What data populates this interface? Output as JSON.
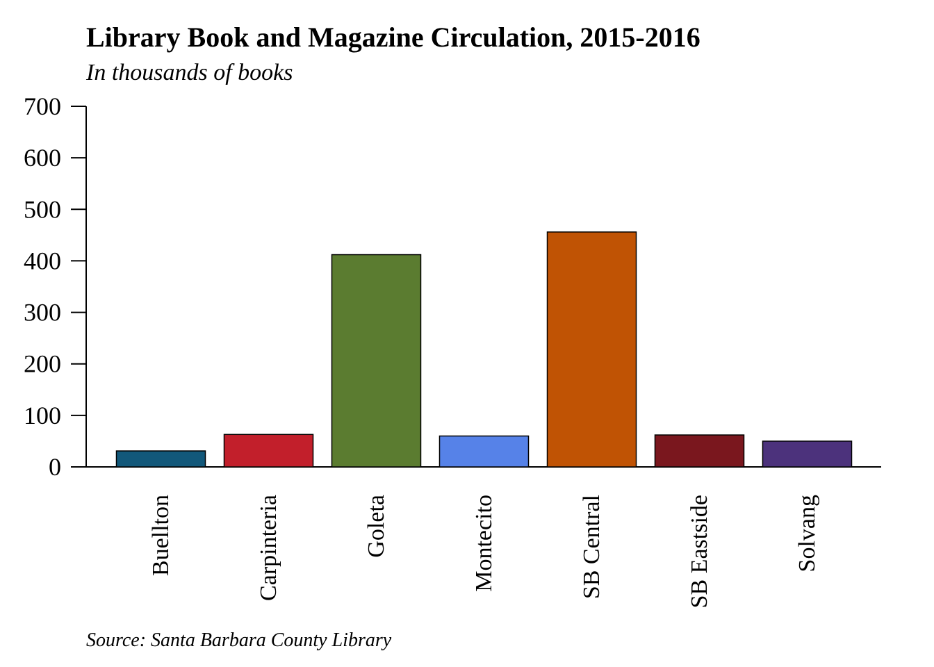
{
  "chart_data": {
    "type": "bar",
    "title": "Library Book and Magazine Circulation, 2015-2016",
    "subtitle": "In thousands of books",
    "source": "Source: Santa Barbara County Library",
    "xlabel": "",
    "ylabel": "",
    "ylim": [
      0,
      700
    ],
    "yticks": [
      0,
      100,
      200,
      300,
      400,
      500,
      600,
      700
    ],
    "grid": false,
    "legend": "none",
    "categories": [
      "Buellton",
      "Carpinteria",
      "Goleta",
      "Montecito",
      "SB Central",
      "SB Eastside",
      "Solvang"
    ],
    "values": [
      31,
      63,
      412,
      60,
      456,
      62,
      50
    ],
    "colors": [
      "#12587a",
      "#c21f2b",
      "#5b7c30",
      "#5682e8",
      "#c05304",
      "#7a171e",
      "#4c327c"
    ]
  }
}
